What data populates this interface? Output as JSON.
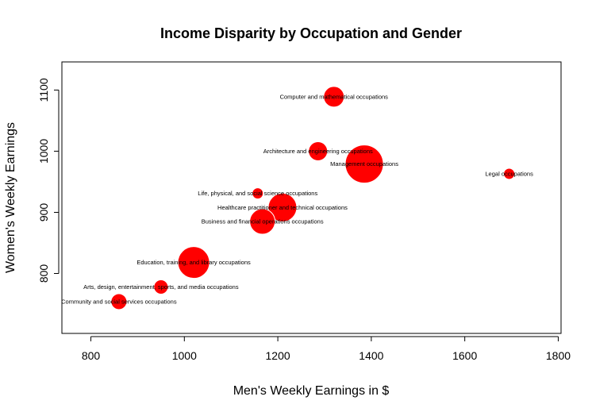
{
  "chart_data": {
    "type": "scatter",
    "title": "Income Disparity by Occupation and Gender",
    "xlabel": "Men's Weekly Earnings in $",
    "ylabel": "Women's Weekly Earnings",
    "xlim": [
      738,
      1806
    ],
    "ylim": [
      702,
      1146
    ],
    "x_ticks": [
      800,
      1000,
      1200,
      1400,
      1600,
      1800
    ],
    "y_ticks": [
      800,
      900,
      1000,
      1100
    ],
    "point_color": "#ff0000",
    "grid": false,
    "legend": "none",
    "bubble_size_legend": "no legend shown; marker size varies",
    "points": [
      {
        "label": "Computer and mathematical occupations",
        "x": 1320,
        "y": 1089,
        "size": 13
      },
      {
        "label": "Architecture and engineering occupations",
        "x": 1286,
        "y": 1000,
        "size": 12
      },
      {
        "label": "Management occupations",
        "x": 1385,
        "y": 979,
        "size": 24
      },
      {
        "label": "Legal occupations",
        "x": 1695,
        "y": 963,
        "size": 7
      },
      {
        "label": "Life, physical, and social science occupations",
        "x": 1157,
        "y": 931,
        "size": 7
      },
      {
        "label": "Healthcare practitioner and technical occupations",
        "x": 1210,
        "y": 908,
        "size": 18
      },
      {
        "label": "Business and financial operations occupations",
        "x": 1167,
        "y": 885,
        "size": 16
      },
      {
        "label": "Education, training, and library occupations",
        "x": 1020,
        "y": 818,
        "size": 20
      },
      {
        "label": "Arts, design, entertainment, sports, and media occupations",
        "x": 950,
        "y": 778,
        "size": 9
      },
      {
        "label": "Community and social services occupations",
        "x": 860,
        "y": 754,
        "size": 10
      }
    ]
  }
}
